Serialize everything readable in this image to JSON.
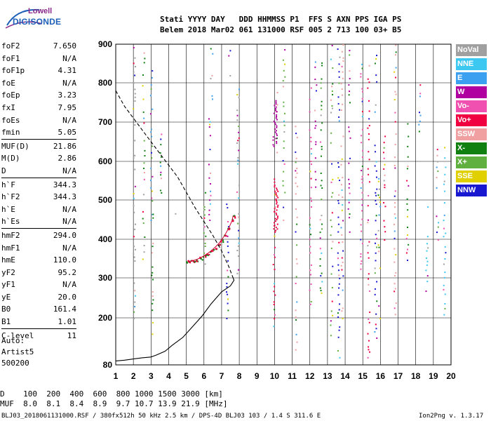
{
  "logo": {
    "line1": "Lowell",
    "line2": "DIGISONDE"
  },
  "header": {
    "line1": "Stati YYYY DAY   DDD HHMMSS P1  FFS S AXN PPS IGA PS",
    "line2": "Belem 2018 Mar02 061 131000 RSF 005 2 713 100 03+ B5"
  },
  "params": [
    {
      "label": "foF2",
      "value": "7.650"
    },
    {
      "label": "foF1",
      "value": "N/A"
    },
    {
      "label": "foF1p",
      "value": "4.31"
    },
    {
      "label": "foE",
      "value": "N/A"
    },
    {
      "label": "foEp",
      "value": "3.23"
    },
    {
      "label": "fxI",
      "value": "7.95"
    },
    {
      "label": "foEs",
      "value": "N/A"
    },
    {
      "label": "fmin",
      "value": "5.05"
    },
    {
      "sep": true
    },
    {
      "label": "MUF(D)",
      "value": "21.86"
    },
    {
      "label": "M(D)",
      "value": "2.86"
    },
    {
      "label": "D",
      "value": "N/A"
    },
    {
      "sep": true
    },
    {
      "label": "h`F",
      "value": "344.3"
    },
    {
      "label": "h`F2",
      "value": "344.3"
    },
    {
      "label": "h`E",
      "value": "N/A"
    },
    {
      "label": "h`Es",
      "value": "N/A"
    },
    {
      "sep": true
    },
    {
      "label": "hmF2",
      "value": "294.0"
    },
    {
      "label": "hmF1",
      "value": "N/A"
    },
    {
      "label": "hmE",
      "value": "110.0"
    },
    {
      "label": "yF2",
      "value": "95.2"
    },
    {
      "label": "yF1",
      "value": "N/A"
    },
    {
      "label": "yE",
      "value": "20.0"
    },
    {
      "label": "B0",
      "value": "161.4"
    },
    {
      "label": "B1",
      "value": "1.01"
    },
    {
      "sep": true
    },
    {
      "label": "C-level",
      "value": "11"
    }
  ],
  "autoscale": {
    "line1": "Auto:",
    "line2": "Artist5",
    "line3": "500200"
  },
  "legend": [
    {
      "label": "NoVal",
      "color": "#a0a0a0"
    },
    {
      "label": "NNE",
      "color": "#3cc8f0"
    },
    {
      "label": "E",
      "color": "#3ca0f0"
    },
    {
      "label": "W",
      "color": "#b000a0"
    },
    {
      "label": "Vo-",
      "color": "#f050b0"
    },
    {
      "label": "Vo+",
      "color": "#f00040"
    },
    {
      "label": "SSW",
      "color": "#f0a0a0"
    },
    {
      "label": "X-",
      "color": "#108010"
    },
    {
      "label": "X+",
      "color": "#60b040"
    },
    {
      "label": "SSE",
      "color": "#e0d000"
    },
    {
      "label": "NNW",
      "color": "#1818d0"
    }
  ],
  "footer": {
    "d_row": "D    100  200  400  600  800 1000 1500 3000 [km]",
    "muf_row": "MUF  8.0  8.1  8.4  8.9  9.7 10.7 13.9 21.9 [MHz]",
    "file_info": "BLJ03_2018061131000.RSF / 380fx512h 50 kHz 2.5 km / DPS-4D BLJ03 103 / 1.4 S 311.6 E",
    "version": "Ion2Png v. 1.3.17"
  },
  "chart_data": {
    "type": "scatter",
    "x_ticks": [
      1,
      2,
      3,
      4,
      5,
      6,
      7,
      8,
      9,
      10,
      11,
      12,
      13,
      14,
      15,
      16,
      17,
      18,
      19,
      20
    ],
    "y_ticks": [
      80,
      200,
      300,
      400,
      500,
      600,
      700,
      800,
      900
    ],
    "xlim": [
      1,
      20
    ],
    "ylim": [
      80,
      900
    ],
    "grid": true,
    "scaled_trace": {
      "name": "",
      "x": [
        5.05,
        5.2,
        5.4,
        5.6,
        5.8,
        6.0,
        6.2,
        6.4,
        6.6,
        6.8,
        7.0,
        7.2,
        7.4,
        7.6,
        7.65
      ],
      "y": [
        344,
        343,
        345,
        348,
        352,
        357,
        363,
        370,
        378,
        387,
        398,
        412,
        428,
        448,
        460
      ]
    },
    "profile_solid": {
      "x": [
        1.0,
        1.5,
        2.0,
        2.5,
        3.0,
        3.3,
        3.8,
        4.2,
        4.8,
        5.3,
        5.9,
        6.4,
        7.0,
        7.5,
        7.7,
        7.65
      ],
      "y": [
        90,
        92,
        95,
        98,
        100,
        105,
        115,
        130,
        150,
        175,
        205,
        235,
        265,
        280,
        294,
        300
      ]
    },
    "profile_dashed": {
      "x": [
        1.0,
        1.5,
        2.0,
        2.5,
        3.0,
        3.5,
        4.0,
        4.5,
        5.0,
        5.5,
        6.0,
        6.5,
        7.0,
        7.4,
        7.65
      ],
      "y": [
        780,
        740,
        710,
        680,
        650,
        620,
        590,
        560,
        520,
        480,
        445,
        410,
        370,
        330,
        300
      ]
    }
  }
}
